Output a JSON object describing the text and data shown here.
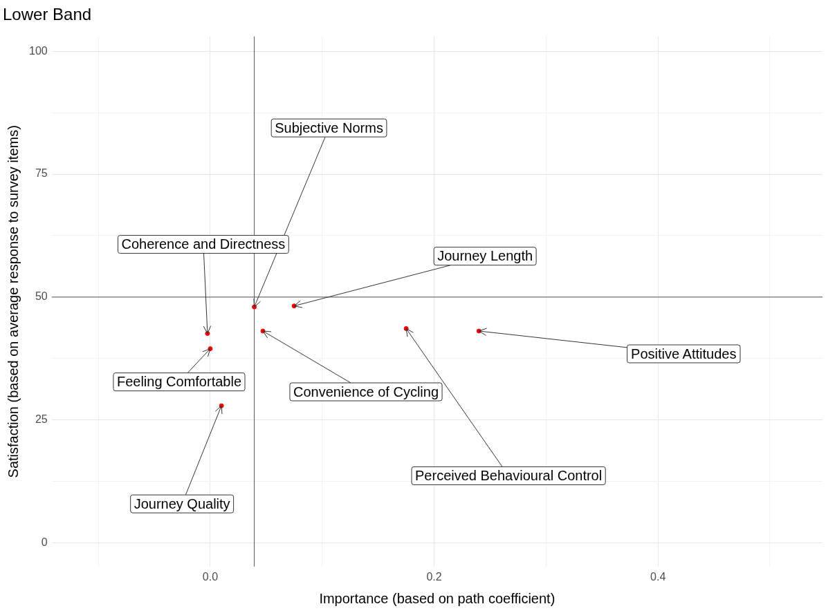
{
  "chart_data": {
    "type": "scatter",
    "title": "Lower Band",
    "xlabel": "Importance (based on path coefficient)",
    "ylabel": "Satisfaction (based on average response to survey items)",
    "x": [
      0.0393,
      0.0749,
      -0.0025,
      0.0,
      0.01,
      0.047,
      0.175,
      0.24
    ],
    "series": [
      {
        "color": "#ff0000",
        "values": [
          48.0,
          48.2,
          42.6,
          39.5,
          27.9,
          43.1,
          43.6,
          43.1
        ]
      }
    ],
    "xlim": [
      -0.1417,
      0.547
    ],
    "ylim": [
      -4.8,
      103
    ],
    "xticks": [
      {
        "value": -0.1,
        "label": null
      },
      {
        "value": 0,
        "label": "0.0"
      },
      {
        "value": 0.1,
        "label": null
      },
      {
        "value": 0.2,
        "label": "0.2"
      },
      {
        "value": 0.3,
        "label": null
      },
      {
        "value": 0.4,
        "label": "0.4"
      },
      {
        "value": 0.5,
        "label": null
      }
    ],
    "yticks": [
      0,
      {
        "value": 12.5,
        "label": null
      },
      25,
      {
        "value": 37.5,
        "label": null
      },
      50,
      {
        "value": 62.5,
        "label": null
      },
      75,
      {
        "value": 87.5,
        "label": null
      },
      100
    ],
    "grid": true,
    "legend": false,
    "marker": "circle",
    "ref_lines": [
      {
        "axis": "x",
        "value": 0.0393,
        "color": "#555555"
      },
      {
        "axis": "y",
        "value": 50,
        "color": "#555555"
      }
    ],
    "annotations": [
      {
        "text": "Subjective Norms",
        "x": 0.0393,
        "y": 48.0
      },
      {
        "text": "Journey Length",
        "x": 0.0749,
        "y": 48.2
      },
      {
        "text": "Coherence and Directness",
        "x": -0.0025,
        "y": 42.6
      },
      {
        "text": "Feeling Comfortable",
        "x": 0.0,
        "y": 39.5
      },
      {
        "text": "Journey Quality",
        "x": 0.01,
        "y": 27.9
      },
      {
        "text": "Convenience of Cycling",
        "x": 0.047,
        "y": 43.1
      },
      {
        "text": "Perceived Behavioural Control",
        "x": 0.175,
        "y": 43.6
      },
      {
        "text": "Positive Attitudes",
        "x": 0.24,
        "y": 43.1
      }
    ]
  }
}
